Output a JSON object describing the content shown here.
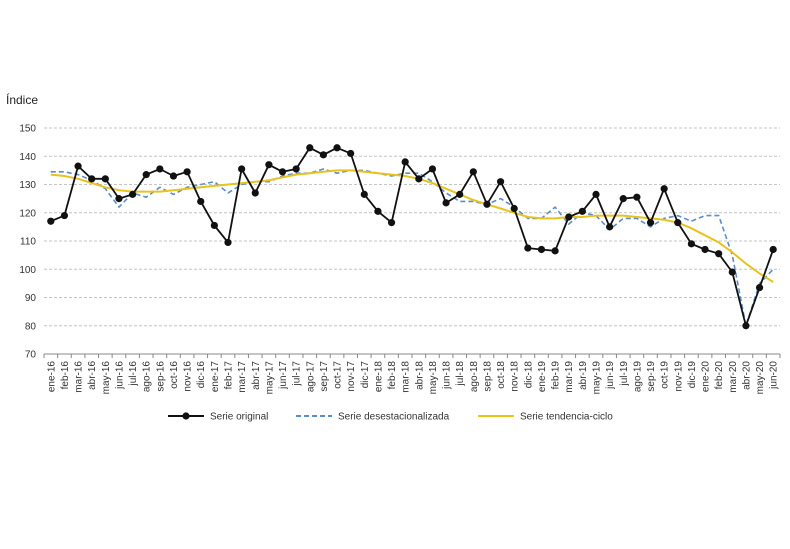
{
  "chart_data": {
    "type": "line",
    "title": "",
    "ylabel": "Índice",
    "xlabel": "",
    "ylim": [
      70,
      150
    ],
    "yticks": [
      70,
      80,
      90,
      100,
      110,
      120,
      130,
      140,
      150
    ],
    "grid": true,
    "legend_position": "bottom",
    "categories": [
      "ene-16",
      "feb-16",
      "mar-16",
      "abr-16",
      "may-16",
      "jun-16",
      "jul-16",
      "ago-16",
      "sep-16",
      "oct-16",
      "nov-16",
      "dic-16",
      "ene-17",
      "feb-17",
      "mar-17",
      "abr-17",
      "may-17",
      "jun-17",
      "jul-17",
      "ago-17",
      "sep-17",
      "oct-17",
      "nov-17",
      "dic-17",
      "ene-18",
      "feb-18",
      "mar-18",
      "abr-18",
      "may-18",
      "jun-18",
      "jul-18",
      "ago-18",
      "sep-18",
      "oct-18",
      "nov-18",
      "dic-18",
      "ene-19",
      "feb-19",
      "mar-19",
      "abr-19",
      "may-19",
      "jun-19",
      "jul-19",
      "ago-19",
      "sep-19",
      "oct-19",
      "nov-19",
      "dic-19",
      "ene-20",
      "feb-20",
      "mar-20",
      "abr-20",
      "may-20",
      "jun-20"
    ],
    "series": [
      {
        "name": "Serie original",
        "color": "#111111",
        "style": "solid-markers",
        "values": [
          117,
          119,
          136.5,
          132,
          132,
          125,
          126.5,
          133.5,
          135.5,
          133,
          134.5,
          124,
          115.5,
          109.5,
          135.5,
          127,
          137,
          134.5,
          135.5,
          143,
          140.5,
          143,
          141,
          126.5,
          120.5,
          116.5,
          138,
          132,
          135.5,
          123.5,
          126.5,
          134.5,
          123,
          131,
          121.5,
          107.5,
          107,
          106.5,
          118.5,
          120.5,
          126.5,
          115,
          125,
          125.5,
          116.5,
          128.5,
          116.5,
          109,
          107,
          105.5,
          99,
          80,
          93.5,
          107
        ]
      },
      {
        "name": "Serie desestacionalizada",
        "color": "#5b8ec9",
        "style": "dashed",
        "values": [
          134.5,
          134.5,
          133.5,
          131.5,
          128.5,
          122,
          127,
          125.5,
          129,
          126.5,
          129,
          130,
          131,
          127,
          130,
          131,
          131,
          133,
          134,
          134,
          135.5,
          134,
          135,
          135,
          134,
          133,
          134,
          134,
          131,
          127,
          124,
          124,
          123,
          125,
          122,
          118,
          118,
          122,
          116,
          120,
          119,
          114,
          118,
          118,
          115,
          118,
          119,
          117,
          119,
          119,
          105,
          80,
          95,
          100
        ]
      },
      {
        "name": "Serie tendencia-ciclo",
        "color": "#e8c31e",
        "style": "solid",
        "values": [
          133.5,
          133,
          132,
          130.5,
          129,
          128,
          127.5,
          127.5,
          127.5,
          128,
          128.5,
          129,
          129.5,
          130,
          130.5,
          131,
          131.5,
          132.5,
          133.5,
          134,
          134.5,
          135,
          135,
          134.5,
          134,
          133.5,
          133,
          132,
          130.5,
          128.5,
          126.5,
          124.5,
          123,
          121.5,
          120,
          118.5,
          118,
          118,
          118.5,
          118.5,
          119,
          119,
          119,
          118.5,
          118,
          117.5,
          116.5,
          114.5,
          112,
          109.5,
          106,
          102,
          98.5,
          95.5
        ]
      }
    ]
  }
}
